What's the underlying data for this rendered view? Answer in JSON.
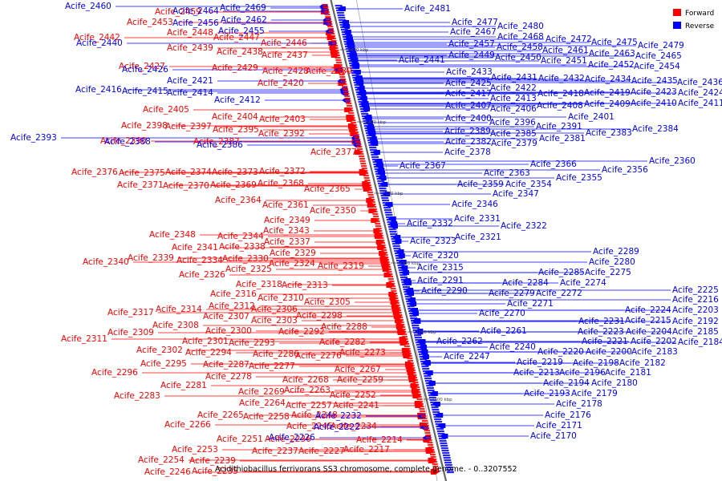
{
  "legend": {
    "forward_label": "Forward",
    "reverse_label": "Reverse",
    "forward_color": "#ff0000",
    "reverse_color": "#0000ff"
  },
  "caption": "Acidithiobacillus ferrivorans SS3 chromosome, complete genome. - 0..3207552",
  "axis_ticks": [
    "2450 kbp",
    "2400 kbp",
    "2350 kbp",
    "2300 kbp",
    "2250 kbp",
    "2200 kbp"
  ],
  "forward_genes": [
    "Acife_2459",
    "Acife_2453",
    "Acife_2448",
    "Acife_2442",
    "Acife_2447",
    "Acife_2439",
    "Acife_2446",
    "Acife_2438",
    "Acife_2437",
    "Acife_2427",
    "Acife_2429",
    "Acife_2428",
    "Acife_2430",
    "Acife_2420",
    "Acife_2405",
    "Acife_2404",
    "Acife_2403",
    "Acife_2398",
    "Acife_2397",
    "Acife_2395",
    "Acife_2392",
    "Acife_2390",
    "Acife_2387",
    "Acife_2377",
    "Acife_2376",
    "Acife_2375",
    "Acife_2374",
    "Acife_2373",
    "Acife_2372",
    "Acife_2371",
    "Acife_2370",
    "Acife_2369",
    "Acife_2368",
    "Acife_2365",
    "Acife_2364",
    "Acife_2361",
    "Acife_2350",
    "Acife_2349",
    "Acife_2343",
    "Acife_2348",
    "Acife_2344",
    "Acife_2337",
    "Acife_2341",
    "Acife_2338",
    "Acife_2340",
    "Acife_2339",
    "Acife_2334",
    "Acife_2330",
    "Acife_2329",
    "Acife_2324",
    "Acife_2319",
    "Acife_2326",
    "Acife_2325",
    "Acife_2318",
    "Acife_2313",
    "Acife_2316",
    "Acife_2310",
    "Acife_2312",
    "Acife_2306",
    "Acife_2305",
    "Acife_2317",
    "Acife_2314",
    "Acife_2307",
    "Acife_2303",
    "Acife_2298",
    "Acife_2309",
    "Acife_2308",
    "Acife_2300",
    "Acife_2292",
    "Acife_2288",
    "Acife_2311",
    "Acife_2301",
    "Acife_2293",
    "Acife_2282",
    "Acife_2302",
    "Acife_2294",
    "Acife_2286",
    "Acife_2276",
    "Acife_2273",
    "Acife_2295",
    "Acife_2287",
    "Acife_2277",
    "Acife_2296",
    "Acife_2278",
    "Acife_2267",
    "Acife_2268",
    "Acife_2259",
    "Acife_2281",
    "Acife_2269",
    "Acife_2263",
    "Acife_2252",
    "Acife_2283",
    "Acife_2264",
    "Acife_2257",
    "Acife_2241",
    "Acife_2265",
    "Acife_2258",
    "Acife_2248",
    "Acife_2266",
    "Acife_2245",
    "Acife_2234",
    "Acife_2251",
    "Acife_2236",
    "Acife_2253",
    "Acife_2237",
    "Acife_2227",
    "Acife_2214",
    "Acife_2217",
    "Acife_2254",
    "Acife_2239",
    "Acife_2246",
    "Acife_2235"
  ],
  "reverse_genes": [
    "Acife_2460",
    "Acife_2464",
    "Acife_2469",
    "Acife_2456",
    "Acife_2462",
    "Acife_2455",
    "Acife_2440",
    "Acife_2426",
    "Acife_2421",
    "Acife_2416",
    "Acife_2415",
    "Acife_2414",
    "Acife_2412",
    "Acife_2393",
    "Acife_2388",
    "Acife_2386",
    "Acife_2481",
    "Acife_2477",
    "Acife_2480",
    "Acife_2467",
    "Acife_2468",
    "Acife_2472",
    "Acife_2475",
    "Acife_2479",
    "Acife_2457",
    "Acife_2458",
    "Acife_2461",
    "Acife_2463",
    "Acife_2465",
    "Acife_2449",
    "Acife_2450",
    "Acife_2451",
    "Acife_2452",
    "Acife_2454",
    "Acife_2441",
    "Acife_2433",
    "Acife_2431",
    "Acife_2432",
    "Acife_2434",
    "Acife_2435",
    "Acife_2436",
    "Acife_2425",
    "Acife_2422",
    "Acife_2417",
    "Acife_2418",
    "Acife_2419",
    "Acife_2423",
    "Acife_2424",
    "Acife_2413",
    "Acife_2407",
    "Acife_2406",
    "Acife_2408",
    "Acife_2409",
    "Acife_2410",
    "Acife_2411",
    "Acife_2401",
    "Acife_2400",
    "Acife_2396",
    "Acife_2391",
    "Acife_2389",
    "Acife_2385",
    "Acife_2383",
    "Acife_2384",
    "Acife_2382",
    "Acife_2379",
    "Acife_2381",
    "Acife_2378",
    "Acife_2367",
    "Acife_2366",
    "Acife_2360",
    "Acife_2363",
    "Acife_2356",
    "Acife_2355",
    "Acife_2359",
    "Acife_2354",
    "Acife_2347",
    "Acife_2346",
    "Acife_2332",
    "Acife_2331",
    "Acife_2322",
    "Acife_2323",
    "Acife_2321",
    "Acife_2320",
    "Acife_2315",
    "Acife_2289",
    "Acife_2280",
    "Acife_2285",
    "Acife_2275",
    "Acife_2291",
    "Acife_2284",
    "Acife_2274",
    "Acife_2290",
    "Acife_2279",
    "Acife_2272",
    "Acife_2271",
    "Acife_2270",
    "Acife_2225",
    "Acife_2216",
    "Acife_2224",
    "Acife_2203",
    "Acife_2231",
    "Acife_2215",
    "Acife_2192",
    "Acife_2261",
    "Acife_2223",
    "Acife_2204",
    "Acife_2185",
    "Acife_2262",
    "Acife_2221",
    "Acife_2202",
    "Acife_2184",
    "Acife_2240",
    "Acife_2220",
    "Acife_2200",
    "Acife_2183",
    "Acife_2247",
    "Acife_2219",
    "Acife_2198",
    "Acife_2182",
    "Acife_2213",
    "Acife_2196",
    "Acife_2181",
    "Acife_2194",
    "Acife_2180",
    "Acife_2193",
    "Acife_2179",
    "Acife_2178",
    "Acife_2176",
    "Acife_2171",
    "Acife_2170",
    "Acife_2232",
    "Acife_2222",
    "Acife_2226"
  ]
}
